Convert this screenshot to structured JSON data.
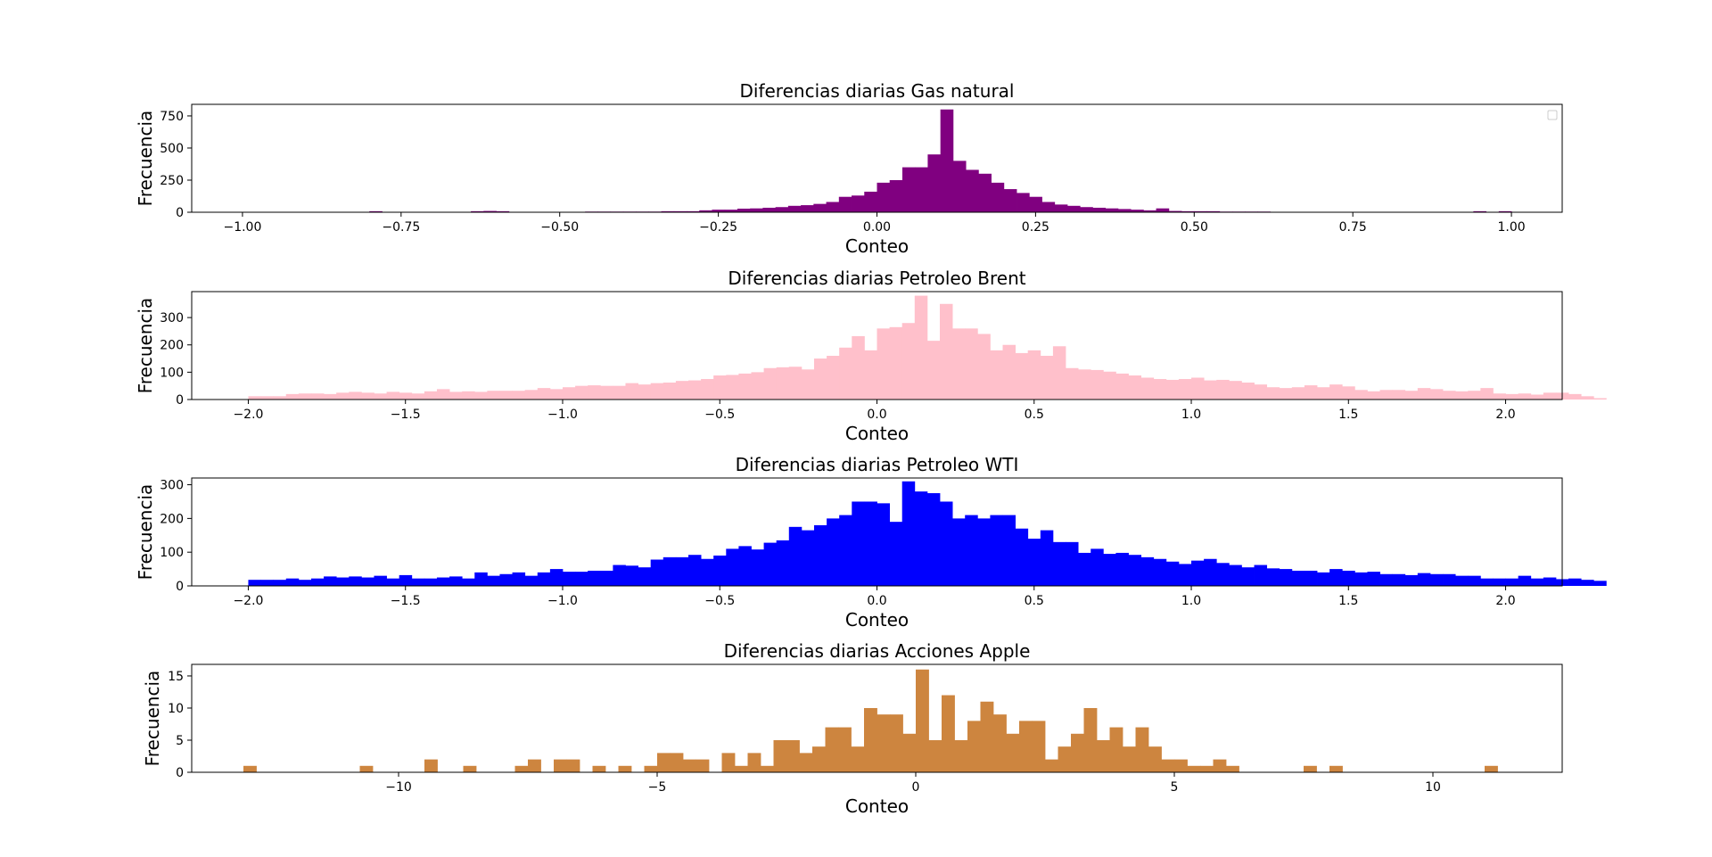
{
  "chart_data": [
    {
      "type": "bar",
      "title": "Diferencias diarias Gas natural",
      "xlabel": "Conteo",
      "ylabel": "Frecuencia",
      "color": "#800080",
      "legend": "top-right (empty)",
      "xlim": [
        -1.08,
        1.08
      ],
      "ylim": [
        0,
        840
      ],
      "xticks": [
        -1.0,
        -0.75,
        -0.5,
        -0.25,
        0.0,
        0.25,
        0.5,
        0.75,
        1.0
      ],
      "xtick_labels": [
        "−1.00",
        "−0.75",
        "−0.50",
        "−0.25",
        "0.00",
        "0.25",
        "0.50",
        "0.75",
        "1.00"
      ],
      "yticks": [
        0,
        250,
        500,
        750
      ],
      "ytick_labels": [
        "0",
        "250",
        "500",
        "750"
      ],
      "bin_start": -1.0,
      "bin_width": 0.02,
      "values": [
        0,
        0,
        0,
        0,
        0,
        0,
        0,
        0,
        0,
        0,
        8,
        0,
        0,
        0,
        0,
        0,
        0,
        0,
        8,
        10,
        8,
        0,
        0,
        0,
        0,
        0,
        0,
        5,
        5,
        5,
        5,
        5,
        5,
        8,
        8,
        8,
        15,
        20,
        20,
        28,
        30,
        35,
        40,
        50,
        55,
        65,
        80,
        120,
        130,
        160,
        230,
        250,
        350,
        350,
        450,
        800,
        400,
        330,
        300,
        230,
        180,
        150,
        120,
        80,
        60,
        50,
        40,
        35,
        30,
        25,
        20,
        15,
        30,
        10,
        8,
        8,
        8,
        5,
        5,
        5,
        5,
        0,
        0,
        0,
        0,
        0,
        0,
        0,
        0,
        0,
        0,
        0,
        0,
        0,
        0,
        0,
        0,
        8,
        0,
        8,
        0
      ]
    },
    {
      "type": "bar",
      "title": "Diferencias diarias Petroleo Brent",
      "xlabel": "Conteo",
      "ylabel": "Frecuencia",
      "color": "#ffc0cb",
      "xlim": [
        -2.18,
        2.18
      ],
      "ylim": [
        0,
        395
      ],
      "xticks": [
        -2.0,
        -1.5,
        -1.0,
        -0.5,
        0.0,
        0.5,
        1.0,
        1.5,
        2.0
      ],
      "xtick_labels": [
        "−2.0",
        "−1.5",
        "−1.0",
        "−0.5",
        "0.0",
        "0.5",
        "1.0",
        "1.5",
        "2.0"
      ],
      "yticks": [
        0,
        100,
        200,
        300
      ],
      "ytick_labels": [
        "0",
        "100",
        "200",
        "300"
      ],
      "bin_start": -2.0,
      "bin_width": 0.04,
      "values": [
        12,
        12,
        12,
        20,
        22,
        22,
        20,
        25,
        28,
        25,
        22,
        28,
        25,
        22,
        30,
        38,
        28,
        30,
        28,
        32,
        32,
        32,
        35,
        42,
        38,
        45,
        50,
        52,
        50,
        50,
        60,
        55,
        60,
        62,
        68,
        70,
        75,
        88,
        90,
        95,
        100,
        115,
        118,
        120,
        110,
        150,
        160,
        190,
        232,
        180,
        260,
        265,
        280,
        380,
        215,
        350,
        260,
        260,
        240,
        180,
        200,
        170,
        180,
        160,
        195,
        115,
        110,
        108,
        102,
        95,
        88,
        80,
        75,
        72,
        75,
        80,
        70,
        72,
        68,
        62,
        55,
        45,
        42,
        45,
        52,
        45,
        55,
        48,
        35,
        30,
        35,
        35,
        32,
        42,
        38,
        32,
        30,
        32,
        42,
        22,
        20,
        22,
        18,
        25,
        25,
        20,
        12,
        5
      ]
    },
    {
      "type": "bar",
      "title": "Diferencias diarias Petroleo WTI",
      "xlabel": "Conteo",
      "ylabel": "Frecuencia",
      "color": "#0000ff",
      "xlim": [
        -2.18,
        2.18
      ],
      "ylim": [
        0,
        320
      ],
      "xticks": [
        -2.0,
        -1.5,
        -1.0,
        -0.5,
        0.0,
        0.5,
        1.0,
        1.5,
        2.0
      ],
      "xtick_labels": [
        "−2.0",
        "−1.5",
        "−1.0",
        "−0.5",
        "0.0",
        "0.5",
        "1.0",
        "1.5",
        "2.0"
      ],
      "yticks": [
        0,
        100,
        200,
        300
      ],
      "ytick_labels": [
        "0",
        "100",
        "200",
        "300"
      ],
      "bin_start": -2.0,
      "bin_width": 0.04,
      "values": [
        18,
        18,
        18,
        22,
        18,
        22,
        28,
        25,
        28,
        25,
        30,
        22,
        32,
        22,
        22,
        25,
        28,
        22,
        40,
        30,
        35,
        40,
        30,
        40,
        50,
        42,
        42,
        45,
        45,
        62,
        60,
        55,
        78,
        85,
        85,
        92,
        80,
        90,
        110,
        118,
        108,
        128,
        135,
        175,
        165,
        180,
        200,
        210,
        250,
        250,
        245,
        190,
        310,
        280,
        275,
        250,
        200,
        210,
        200,
        210,
        210,
        170,
        140,
        165,
        130,
        130,
        98,
        110,
        95,
        98,
        92,
        85,
        80,
        72,
        65,
        75,
        80,
        68,
        62,
        55,
        62,
        52,
        50,
        45,
        45,
        40,
        50,
        45,
        40,
        42,
        35,
        35,
        32,
        38,
        35,
        35,
        30,
        30,
        22,
        22,
        22,
        30,
        22,
        25,
        20,
        22,
        18,
        15
      ]
    },
    {
      "type": "bar",
      "title": "Diferencias diarias Acciones Apple",
      "xlabel": "Conteo",
      "ylabel": "Frecuencia",
      "color": "#cd853f",
      "xlim": [
        -14.0,
        12.5
      ],
      "ylim": [
        0,
        16.8
      ],
      "xticks": [
        -10,
        -5,
        0,
        5,
        10
      ],
      "xtick_labels": [
        "−10",
        "−5",
        "0",
        "5",
        "10"
      ],
      "yticks": [
        0,
        5,
        10,
        15
      ],
      "ytick_labels": [
        "0",
        "5",
        "10",
        "15"
      ],
      "bins": [
        {
          "x": -13.0,
          "v": 1
        },
        {
          "x": -10.75,
          "v": 1
        },
        {
          "x": -9.5,
          "v": 2
        },
        {
          "x": -8.75,
          "v": 1
        },
        {
          "x": -7.75,
          "v": 1
        },
        {
          "x": -7.5,
          "v": 2
        },
        {
          "x": -7.0,
          "v": 2
        },
        {
          "x": -6.75,
          "v": 2
        },
        {
          "x": -6.25,
          "v": 1
        },
        {
          "x": -5.75,
          "v": 1
        },
        {
          "x": -5.25,
          "v": 1
        },
        {
          "x": -5.0,
          "v": 3
        },
        {
          "x": -4.75,
          "v": 3
        },
        {
          "x": -4.5,
          "v": 2
        },
        {
          "x": -4.25,
          "v": 2
        },
        {
          "x": -3.75,
          "v": 3
        },
        {
          "x": -3.5,
          "v": 1
        },
        {
          "x": -3.25,
          "v": 3
        },
        {
          "x": -3.0,
          "v": 1
        },
        {
          "x": -2.75,
          "v": 5
        },
        {
          "x": -2.5,
          "v": 5
        },
        {
          "x": -2.25,
          "v": 3
        },
        {
          "x": -2.0,
          "v": 4
        },
        {
          "x": -1.75,
          "v": 7
        },
        {
          "x": -1.5,
          "v": 7
        },
        {
          "x": -1.25,
          "v": 4
        },
        {
          "x": -1.0,
          "v": 10
        },
        {
          "x": -0.75,
          "v": 9
        },
        {
          "x": -0.5,
          "v": 9
        },
        {
          "x": -0.25,
          "v": 6
        },
        {
          "x": 0.0,
          "v": 16
        },
        {
          "x": 0.25,
          "v": 5
        },
        {
          "x": 0.5,
          "v": 12
        },
        {
          "x": 0.75,
          "v": 5
        },
        {
          "x": 1.0,
          "v": 8
        },
        {
          "x": 1.25,
          "v": 11
        },
        {
          "x": 1.5,
          "v": 9
        },
        {
          "x": 1.75,
          "v": 6
        },
        {
          "x": 2.0,
          "v": 8
        },
        {
          "x": 2.25,
          "v": 8
        },
        {
          "x": 2.5,
          "v": 2
        },
        {
          "x": 2.75,
          "v": 4
        },
        {
          "x": 3.0,
          "v": 6
        },
        {
          "x": 3.25,
          "v": 10
        },
        {
          "x": 3.5,
          "v": 5
        },
        {
          "x": 3.75,
          "v": 7
        },
        {
          "x": 4.0,
          "v": 4
        },
        {
          "x": 4.25,
          "v": 7
        },
        {
          "x": 4.5,
          "v": 4
        },
        {
          "x": 4.75,
          "v": 2
        },
        {
          "x": 5.0,
          "v": 2
        },
        {
          "x": 5.25,
          "v": 1
        },
        {
          "x": 5.5,
          "v": 1
        },
        {
          "x": 5.75,
          "v": 2
        },
        {
          "x": 6.0,
          "v": 1
        },
        {
          "x": 7.5,
          "v": 1
        },
        {
          "x": 8.0,
          "v": 1
        },
        {
          "x": 11.0,
          "v": 1
        }
      ],
      "bin_width": 0.25
    }
  ]
}
